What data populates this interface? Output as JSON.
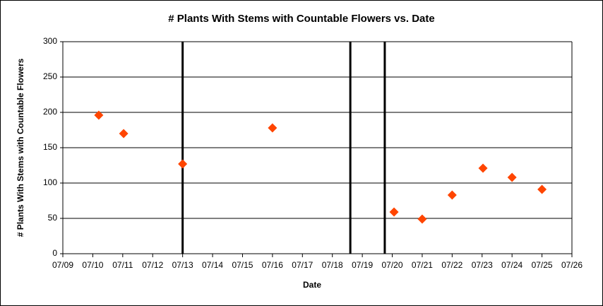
{
  "chart_data": {
    "type": "scatter",
    "title": "# Plants With Stems with Countable Flowers vs. Date",
    "x_label": "Date",
    "y_label": "# Plants With Stems with Countable Flowers",
    "x": [
      10.2,
      11.03,
      13,
      16,
      20.06,
      21,
      22,
      23.03,
      24,
      25
    ],
    "values": [
      196,
      170,
      127,
      178,
      59,
      49,
      83,
      121,
      108,
      91
    ],
    "color": "#ff4500",
    "vlines": [
      13,
      18.6,
      19.75
    ],
    "xlim": [
      9,
      26
    ],
    "xticks": [
      {
        "value": 9,
        "label": "07/09"
      },
      {
        "value": 10,
        "label": "07/10"
      },
      {
        "value": 11,
        "label": "07/11"
      },
      {
        "value": 12,
        "label": "07/12"
      },
      {
        "value": 13,
        "label": "07/13"
      },
      {
        "value": 14,
        "label": "07/14"
      },
      {
        "value": 15,
        "label": "07/15"
      },
      {
        "value": 16,
        "label": "07/16"
      },
      {
        "value": 17,
        "label": "07/17"
      },
      {
        "value": 18,
        "label": "07/18"
      },
      {
        "value": 19,
        "label": "07/19"
      },
      {
        "value": 20,
        "label": "07/20"
      },
      {
        "value": 21,
        "label": "07/21"
      },
      {
        "value": 22,
        "label": "07/22"
      },
      {
        "value": 23,
        "label": "07/23"
      },
      {
        "value": 24,
        "label": "07/24"
      },
      {
        "value": 25,
        "label": "07/25"
      },
      {
        "value": 26,
        "label": "07/26"
      }
    ],
    "ylim": [
      0,
      300
    ],
    "yticks": [
      0,
      50,
      100,
      150,
      200,
      250,
      300
    ],
    "grid": true
  }
}
